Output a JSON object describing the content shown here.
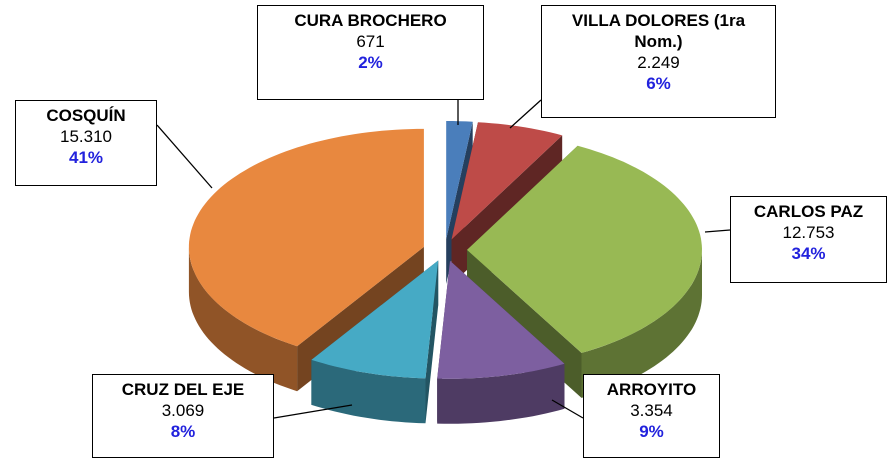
{
  "chart_data": {
    "type": "pie3d",
    "categories": [
      "CURA BROCHERO",
      "VILLA DOLORES (1ra Nom.)",
      "CARLOS PAZ",
      "ARROYITO",
      "CRUZ DEL EJE",
      "COSQUÍN"
    ],
    "values": [
      671,
      2249,
      12753,
      3354,
      3069,
      15310
    ],
    "value_labels": [
      "671",
      "2.249",
      "12.753",
      "3.354",
      "3.069",
      "15.310"
    ],
    "percent_labels": [
      "2%",
      "6%",
      "34%",
      "9%",
      "8%",
      "41%"
    ],
    "colors": [
      "#4a7ebb",
      "#be4b48",
      "#98b954",
      "#7d5fa0",
      "#46aac5",
      "#e8883f"
    ]
  }
}
